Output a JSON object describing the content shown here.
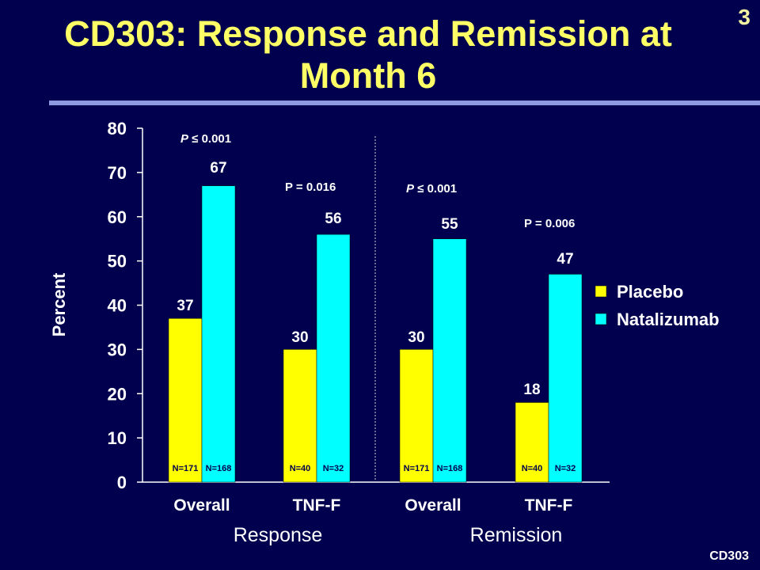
{
  "slide": {
    "number": "3",
    "title_line1": "CD303: Response and Remission at",
    "title_line2": "Month 6",
    "footer_code": "CD303"
  },
  "colors": {
    "background": "#00004e",
    "title": "#ffff66",
    "placebo": "#ffff00",
    "natalizumab": "#00ffff",
    "rule": "#8e9ae0"
  },
  "chart_data": {
    "type": "bar",
    "ylabel": "Percent",
    "ylim": [
      0,
      80
    ],
    "yticks": [
      0,
      10,
      20,
      30,
      40,
      50,
      60,
      70,
      80
    ],
    "categories": [
      "Overall",
      "TNF-F",
      "Overall",
      "TNF-F"
    ],
    "groups": [
      {
        "label": "Response",
        "category_indices": [
          0,
          1
        ]
      },
      {
        "label": "Remission",
        "category_indices": [
          2,
          3
        ]
      }
    ],
    "series": [
      {
        "name": "Placebo",
        "values": [
          37,
          30,
          30,
          18
        ],
        "n_labels": [
          "N=171",
          "N=40",
          "N=171",
          "N=40"
        ]
      },
      {
        "name": "Natalizumab",
        "values": [
          67,
          56,
          55,
          47
        ],
        "n_labels": [
          "N=168",
          "N=32",
          "N=168",
          "N=32"
        ]
      }
    ],
    "p_values": [
      {
        "prefix": "P",
        "italic": true,
        "text": " ≤ 0.001"
      },
      {
        "prefix": "",
        "italic": false,
        "text": "P = 0.016"
      },
      {
        "prefix": "P",
        "italic": true,
        "text": " ≤ 0.001"
      },
      {
        "prefix": "",
        "italic": false,
        "text": "P = 0.006"
      }
    ],
    "legend_position": "right"
  }
}
